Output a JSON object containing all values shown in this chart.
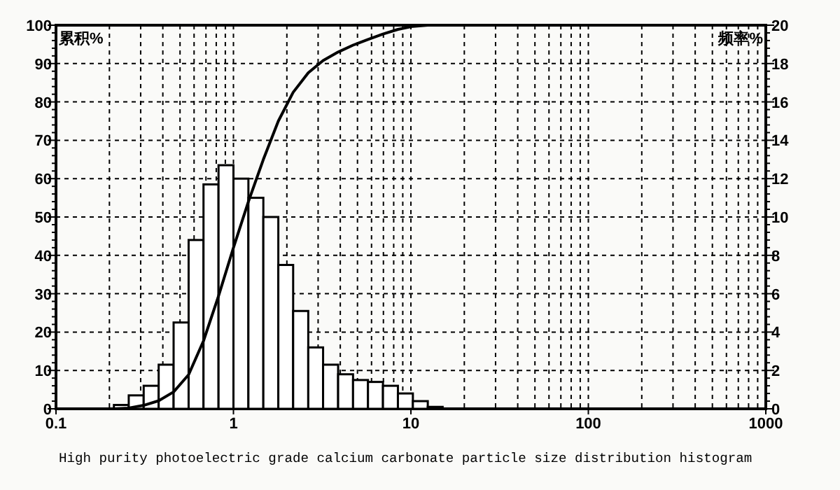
{
  "chart_data": {
    "type": "histogram",
    "ylabel": "累积%",
    "y2label": "频率%",
    "annotations": [
      "High purity photoelectric grade calcium carbonate particle size distribution histogram"
    ],
    "log": "x",
    "grid": true,
    "xlim": [
      0.1,
      1000
    ],
    "xticks": [
      0.1,
      1,
      10,
      100,
      1000
    ],
    "ylim": [
      0,
      100
    ],
    "yticks": [
      0,
      10,
      20,
      30,
      40,
      50,
      60,
      70,
      80,
      90,
      100
    ],
    "y2lim": [
      0,
      20
    ],
    "y2ticks": [
      0,
      2,
      4,
      6,
      8,
      10,
      12,
      14,
      16,
      18,
      20
    ],
    "series": [
      {
        "type": "histogram",
        "axis": "y2",
        "color": "#ffffff",
        "bins": [
          0.212,
          0.257,
          0.312,
          0.379,
          0.46,
          0.559,
          0.678,
          0.824,
          1.0,
          1.214,
          1.474,
          1.79,
          2.17,
          2.64,
          3.2,
          3.89,
          4.72,
          5.73,
          6.96,
          8.45,
          10.26,
          12.45,
          15.1
        ],
        "values": [
          0.2,
          0.7,
          1.2,
          2.3,
          4.5,
          8.8,
          11.7,
          12.7,
          12.0,
          11.0,
          10.0,
          7.5,
          5.1,
          3.2,
          2.3,
          1.8,
          1.5,
          1.4,
          1.2,
          0.8,
          0.4,
          0.1
        ]
      },
      {
        "type": "line",
        "axis": "y",
        "color": "#000000",
        "x": [
          0.212,
          0.257,
          0.312,
          0.379,
          0.46,
          0.559,
          0.678,
          0.824,
          1.0,
          1.214,
          1.474,
          1.79,
          2.17,
          2.64,
          3.2,
          3.89,
          4.72,
          5.73,
          6.96,
          8.45,
          10.26,
          12.45,
          15.1
        ],
        "values": [
          0,
          0.2,
          0.9,
          2.1,
          4.4,
          8.9,
          17.7,
          29.4,
          42,
          54,
          65,
          75,
          82.5,
          87.6,
          90.8,
          93,
          94.8,
          96.3,
          97.7,
          98.9,
          99.7,
          100,
          100
        ]
      }
    ]
  }
}
